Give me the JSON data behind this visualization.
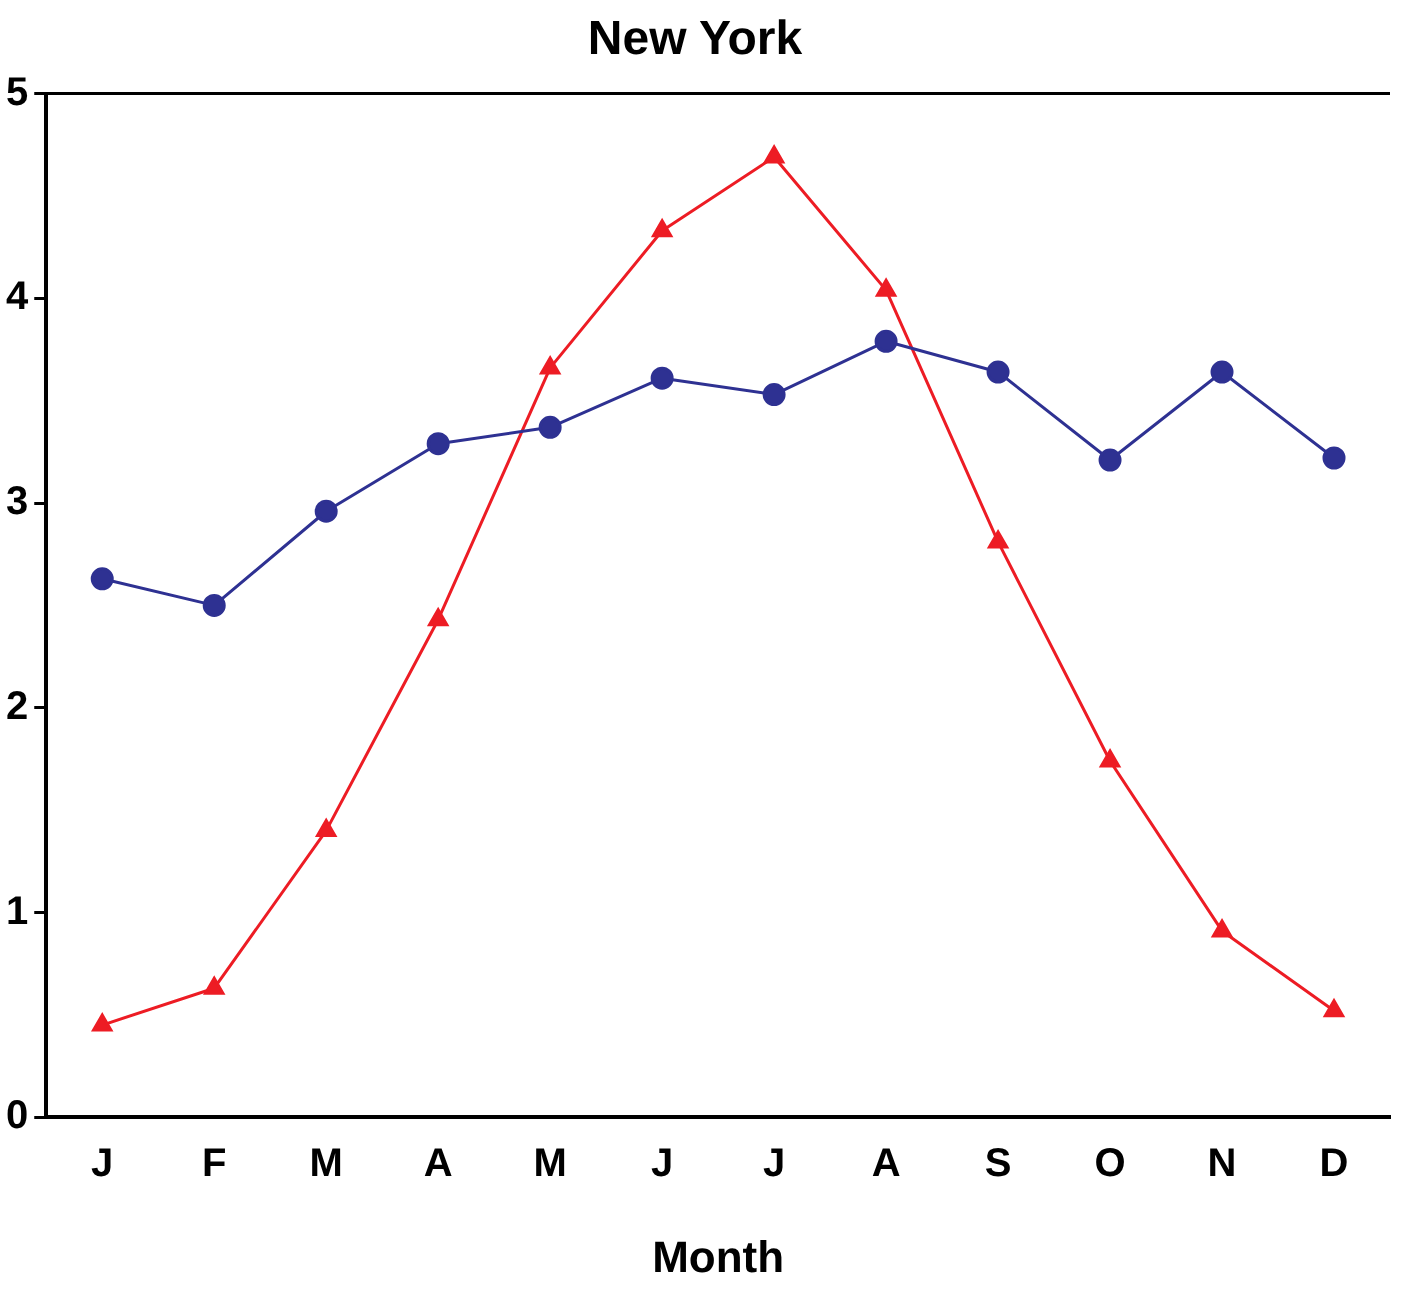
{
  "chart_data": {
    "type": "line",
    "title": "New York",
    "xlabel": "Month",
    "categories": [
      "J",
      "F",
      "M",
      "A",
      "M",
      "J",
      "J",
      "A",
      "S",
      "O",
      "N",
      "D"
    ],
    "series": [
      {
        "color": "#2e3192",
        "marker": "circle",
        "values": [
          2.63,
          2.5,
          2.96,
          3.29,
          3.37,
          3.61,
          3.53,
          3.79,
          3.64,
          3.21,
          3.64,
          3.22
        ]
      },
      {
        "color": "#ed1c24",
        "marker": "triangle",
        "values": [
          0.45,
          0.63,
          1.4,
          2.43,
          3.66,
          4.33,
          4.69,
          4.04,
          2.81,
          1.74,
          0.91,
          0.52
        ]
      }
    ],
    "ylim": [
      0,
      5
    ],
    "yticks": [
      0,
      1,
      2,
      3,
      4,
      5
    ],
    "grid": false,
    "legend": false
  }
}
